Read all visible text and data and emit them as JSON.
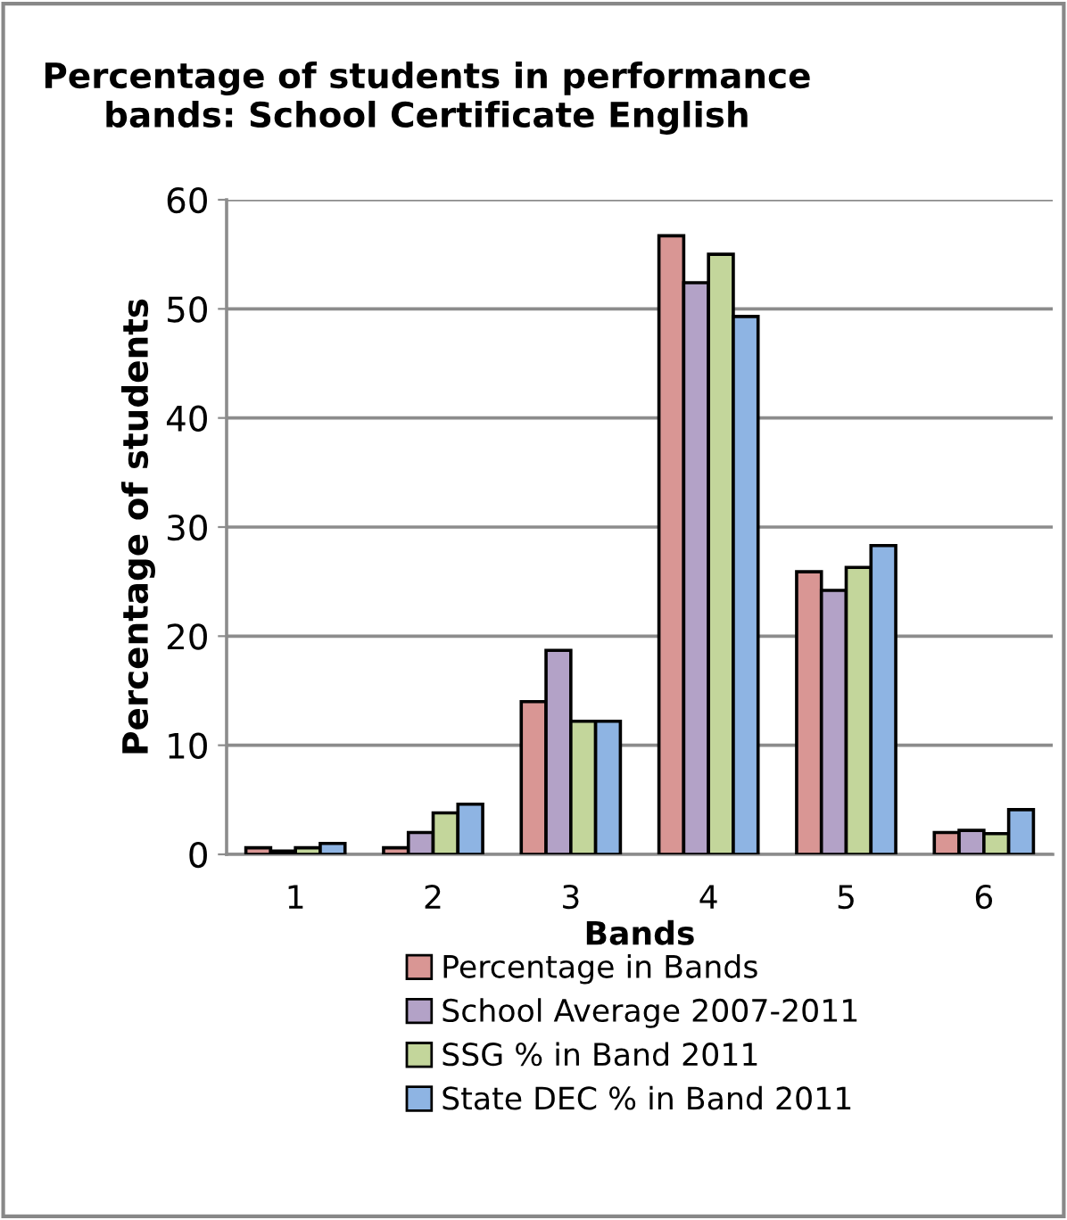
{
  "chart_data": {
    "type": "bar",
    "title": "Percentage of students in performance\nbands: School Certificate English",
    "xlabel": "Bands",
    "ylabel": "Percentage of students",
    "categories": [
      "1",
      "2",
      "3",
      "4",
      "5",
      "6"
    ],
    "series": [
      {
        "name": "Percentage in Bands",
        "color": "#d99694",
        "values": [
          0.6,
          0.6,
          14.0,
          56.7,
          25.9,
          2.0
        ]
      },
      {
        "name": "School Average 2007-2011",
        "color": "#b3a2c7",
        "values": [
          0.3,
          2.0,
          18.7,
          52.4,
          24.2,
          2.2
        ]
      },
      {
        "name": "SSG % in Band 2011",
        "color": "#c3d69b",
        "values": [
          0.6,
          3.8,
          12.2,
          55.0,
          26.3,
          1.9
        ]
      },
      {
        "name": "State DEC % in Band 2011",
        "color": "#8eb4e3",
        "values": [
          1.0,
          4.6,
          12.2,
          49.3,
          28.3,
          4.1
        ]
      }
    ],
    "ylim": [
      0,
      60
    ],
    "yticks": [
      0,
      10,
      20,
      30,
      40,
      50,
      60
    ],
    "grid": "y",
    "legend": "bottom"
  }
}
